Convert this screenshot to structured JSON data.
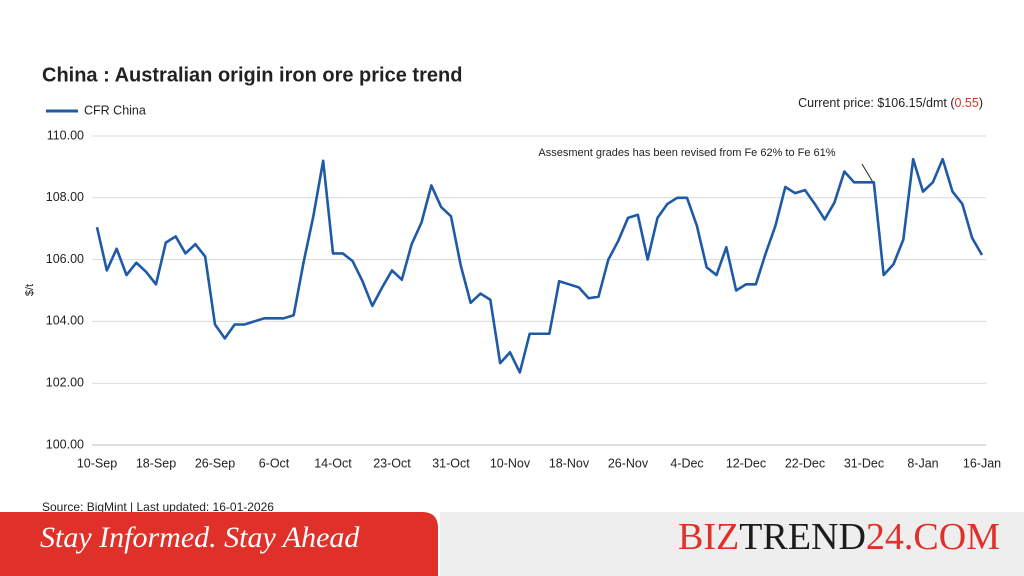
{
  "chart_data": {
    "type": "line",
    "title": "China : Australian origin iron ore price trend",
    "y_label": "$/t",
    "current_price": {
      "prefix": "Current price: $106.15/dmt (",
      "change": "0.55",
      "suffix": ")"
    },
    "annotation": "Assesment grades has been revised from Fe 62% to Fe 61%",
    "source": "Source: BigMint | Last updated: 16-01-2026",
    "categories": [
      "10-Sep",
      null,
      null,
      null,
      null,
      null,
      "18-Sep",
      null,
      null,
      null,
      null,
      null,
      "26-Sep",
      null,
      null,
      null,
      null,
      null,
      "6-Oct",
      null,
      null,
      null,
      null,
      null,
      "14-Oct",
      null,
      null,
      null,
      null,
      null,
      "23-Oct",
      null,
      null,
      null,
      null,
      null,
      "31-Oct",
      null,
      null,
      null,
      null,
      null,
      "10-Nov",
      null,
      null,
      null,
      null,
      null,
      "18-Nov",
      null,
      null,
      null,
      null,
      null,
      "26-Nov",
      null,
      null,
      null,
      null,
      null,
      "4-Dec",
      null,
      null,
      null,
      null,
      null,
      "12-Dec",
      null,
      null,
      null,
      null,
      null,
      "22-Dec",
      null,
      null,
      null,
      null,
      null,
      "31-Dec",
      null,
      null,
      null,
      null,
      null,
      "8-Jan",
      null,
      null,
      null,
      null,
      null,
      "16-Jan"
    ],
    "series": [
      {
        "name": "CFR China",
        "color": "#1f5aa6",
        "values": [
          107.05,
          105.65,
          106.35,
          105.5,
          105.9,
          105.6,
          105.2,
          106.55,
          106.75,
          106.2,
          106.5,
          106.1,
          103.9,
          103.45,
          103.9,
          103.9,
          104.0,
          104.1,
          104.1,
          104.1,
          104.2,
          105.9,
          107.4,
          109.2,
          106.2,
          106.2,
          105.95,
          105.3,
          104.5,
          105.1,
          105.65,
          105.35,
          106.5,
          107.2,
          108.4,
          107.7,
          107.4,
          105.8,
          104.6,
          104.9,
          104.7,
          102.65,
          103.0,
          102.35,
          103.6,
          103.6,
          103.6,
          105.3,
          105.2,
          105.1,
          104.75,
          104.8,
          106.0,
          106.6,
          107.35,
          107.45,
          106.0,
          107.35,
          107.8,
          108.0,
          108.0,
          107.1,
          105.75,
          105.5,
          106.4,
          105.0,
          105.2,
          105.2,
          106.2,
          107.1,
          108.35,
          108.15,
          108.25,
          107.8,
          107.3,
          107.85,
          108.85,
          108.5,
          108.5,
          108.5,
          105.5,
          105.85,
          106.65,
          109.25,
          108.2,
          108.5,
          109.25,
          108.2,
          107.8,
          106.7,
          106.15
        ]
      }
    ],
    "ylim": [
      100,
      110
    ],
    "yticks": [
      {
        "value": 100,
        "label": "100.00"
      },
      {
        "value": 102,
        "label": "102.00"
      },
      {
        "value": 104,
        "label": "104.00"
      },
      {
        "value": 106,
        "label": "106.00"
      },
      {
        "value": 108,
        "label": "108.00"
      },
      {
        "value": 110,
        "label": "110.00"
      }
    ],
    "grid": true
  },
  "banner": {
    "tagline": "Stay Informed. Stay Ahead",
    "brand": [
      {
        "text": "BIZ",
        "color": "#e0302a"
      },
      {
        "text": "TREND",
        "color": "#1c1c1c"
      },
      {
        "text": "24.COM",
        "color": "#e0302a"
      }
    ]
  }
}
